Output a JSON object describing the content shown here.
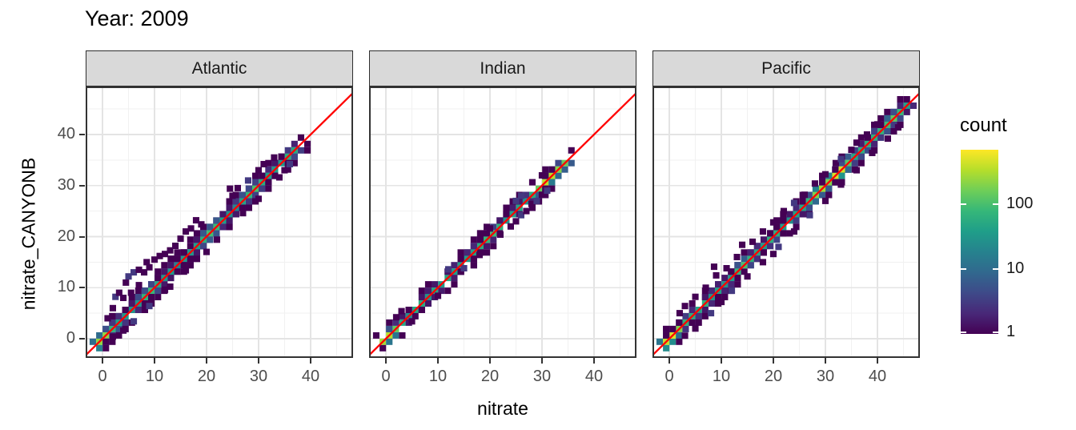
{
  "chart_data": {
    "type": "bin2d",
    "title": "Year: 2009",
    "xlabel": "nitrate",
    "ylabel": "nitrate_CANYONB",
    "x_ticks": [
      0,
      10,
      20,
      30,
      40
    ],
    "x_minor_ticks": [
      5,
      15,
      25,
      35,
      45
    ],
    "y_ticks": [
      0,
      10,
      20,
      30,
      40
    ],
    "y_minor_ticks": [
      5,
      15,
      25,
      35,
      45
    ],
    "xlim": [
      -3.2,
      48.2
    ],
    "ylim": [
      -3.8,
      49.4
    ],
    "bin_size": 1.25,
    "grid": true,
    "reference_line": {
      "type": "y=x",
      "color": "#FF0000"
    },
    "legend": {
      "title": "count",
      "position": "right",
      "scale": "log10",
      "tick_values": [
        100,
        10,
        1
      ],
      "tick_labels": [
        "100",
        "10",
        "1"
      ],
      "max_count": 700,
      "palette": [
        "#440154",
        "#482878",
        "#3e4a89",
        "#31688e",
        "#26828e",
        "#1f9e89",
        "#35b779",
        "#6ece58",
        "#b5de2b",
        "#fde725"
      ]
    },
    "colors": {
      "grid_major": "#e4e4e4",
      "grid_minor": "#f1f1f1",
      "panel_border": "#333333",
      "strip_fill": "#d9d9d9",
      "axis_text": "#4d4d4d"
    },
    "facets": [
      {
        "name": "Atlantic",
        "ridge": {
          "min": -0.6,
          "max": 37.2,
          "base": 28
        },
        "band_density": 0.8,
        "hotspots": [
          [
            0,
            260
          ],
          [
            9,
            55
          ],
          [
            21,
            65
          ],
          [
            29,
            65
          ],
          [
            36,
            35
          ]
        ],
        "outliers": [
          [
            1,
            4
          ],
          [
            2,
            6
          ],
          [
            2.5,
            8.2
          ],
          [
            3.2,
            9
          ],
          [
            4,
            8
          ],
          [
            4.5,
            11
          ],
          [
            5,
            12.2
          ],
          [
            5.5,
            9
          ],
          [
            6,
            13
          ],
          [
            7,
            13.5
          ],
          [
            7,
            10.5
          ],
          [
            8,
            13
          ],
          [
            8.5,
            15
          ],
          [
            9,
            14
          ],
          [
            10,
            15.5
          ],
          [
            11,
            16.2
          ],
          [
            12,
            16.6
          ],
          [
            13,
            17.3
          ],
          [
            14,
            18.2
          ],
          [
            15,
            19.6
          ],
          [
            16,
            21
          ],
          [
            17,
            21.6
          ],
          [
            18,
            23.2
          ],
          [
            19,
            22.4
          ],
          [
            24.5,
            29.4
          ],
          [
            25,
            28
          ],
          [
            26,
            29.5
          ],
          [
            28,
            31
          ],
          [
            30,
            33
          ],
          [
            31,
            34.2
          ],
          [
            33,
            35.5
          ],
          [
            2,
            0.4
          ],
          [
            4,
            1.6
          ],
          [
            6,
            3.4
          ],
          [
            9,
            6.4
          ],
          [
            12,
            9.6
          ],
          [
            20,
            17
          ],
          [
            22,
            19.4
          ],
          [
            27,
            24.6
          ],
          [
            30,
            27.4
          ],
          [
            34,
            31.6
          ],
          [
            35,
            33
          ],
          [
            36,
            34.2
          ],
          [
            13,
            10.2
          ],
          [
            16,
            13.4
          ]
        ]
      },
      {
        "name": "Indian",
        "ridge": {
          "min": -0.6,
          "max": 34.8,
          "base": 40
        },
        "band_density": 0.42,
        "hotspots": [
          [
            0.3,
            320
          ],
          [
            31,
            350
          ],
          [
            33.5,
            150
          ],
          [
            20,
            35
          ]
        ],
        "outliers": [
          [
            2,
            4.2
          ],
          [
            3,
            5.4
          ],
          [
            5,
            3.4
          ],
          [
            10,
            8.4
          ],
          [
            12,
            13.6
          ],
          [
            15,
            13.8
          ],
          [
            18,
            16.4
          ],
          [
            20,
            21.6
          ],
          [
            22,
            20.4
          ],
          [
            24,
            22
          ],
          [
            25,
            23
          ],
          [
            25,
            27
          ],
          [
            26,
            24.2
          ],
          [
            26,
            28
          ],
          [
            27,
            25
          ],
          [
            28,
            26.4
          ],
          [
            29,
            27
          ],
          [
            30,
            28.2
          ],
          [
            30,
            32
          ],
          [
            31,
            29
          ]
        ]
      },
      {
        "name": "Pacific",
        "ridge": {
          "min": -0.6,
          "max": 45.6,
          "base": 45
        },
        "band_density": 0.7,
        "hotspots": [
          [
            0.3,
            480
          ],
          [
            29,
            230
          ],
          [
            32.5,
            500
          ],
          [
            43,
            90
          ],
          [
            15,
            50
          ]
        ],
        "outliers": [
          [
            2,
            5
          ],
          [
            3,
            6.4
          ],
          [
            5,
            8.2
          ],
          [
            7,
            10
          ],
          [
            8.6,
            14.1
          ],
          [
            9,
            12.4
          ],
          [
            11,
            13.8
          ],
          [
            13,
            16
          ],
          [
            14,
            18.4
          ],
          [
            16,
            19
          ],
          [
            18,
            21
          ],
          [
            20,
            22.8
          ],
          [
            22,
            25
          ],
          [
            24,
            26.6
          ],
          [
            26,
            28.2
          ],
          [
            28,
            30.4
          ],
          [
            30,
            32.2
          ],
          [
            32,
            34.4
          ],
          [
            33,
            35.2
          ],
          [
            35,
            37
          ],
          [
            36,
            38.4
          ],
          [
            38,
            40
          ],
          [
            40,
            42
          ],
          [
            3,
            0.6
          ],
          [
            5,
            2
          ],
          [
            8,
            5
          ],
          [
            10,
            7.2
          ],
          [
            12,
            9.4
          ],
          [
            15,
            12.2
          ],
          [
            18,
            15
          ],
          [
            21,
            18
          ],
          [
            24,
            21
          ],
          [
            27,
            24.2
          ],
          [
            30,
            27
          ],
          [
            33,
            30.2
          ],
          [
            36,
            33
          ],
          [
            39,
            36.4
          ],
          [
            42,
            39.2
          ],
          [
            44,
            41.4
          ],
          [
            20,
            16.6
          ]
        ]
      }
    ]
  }
}
